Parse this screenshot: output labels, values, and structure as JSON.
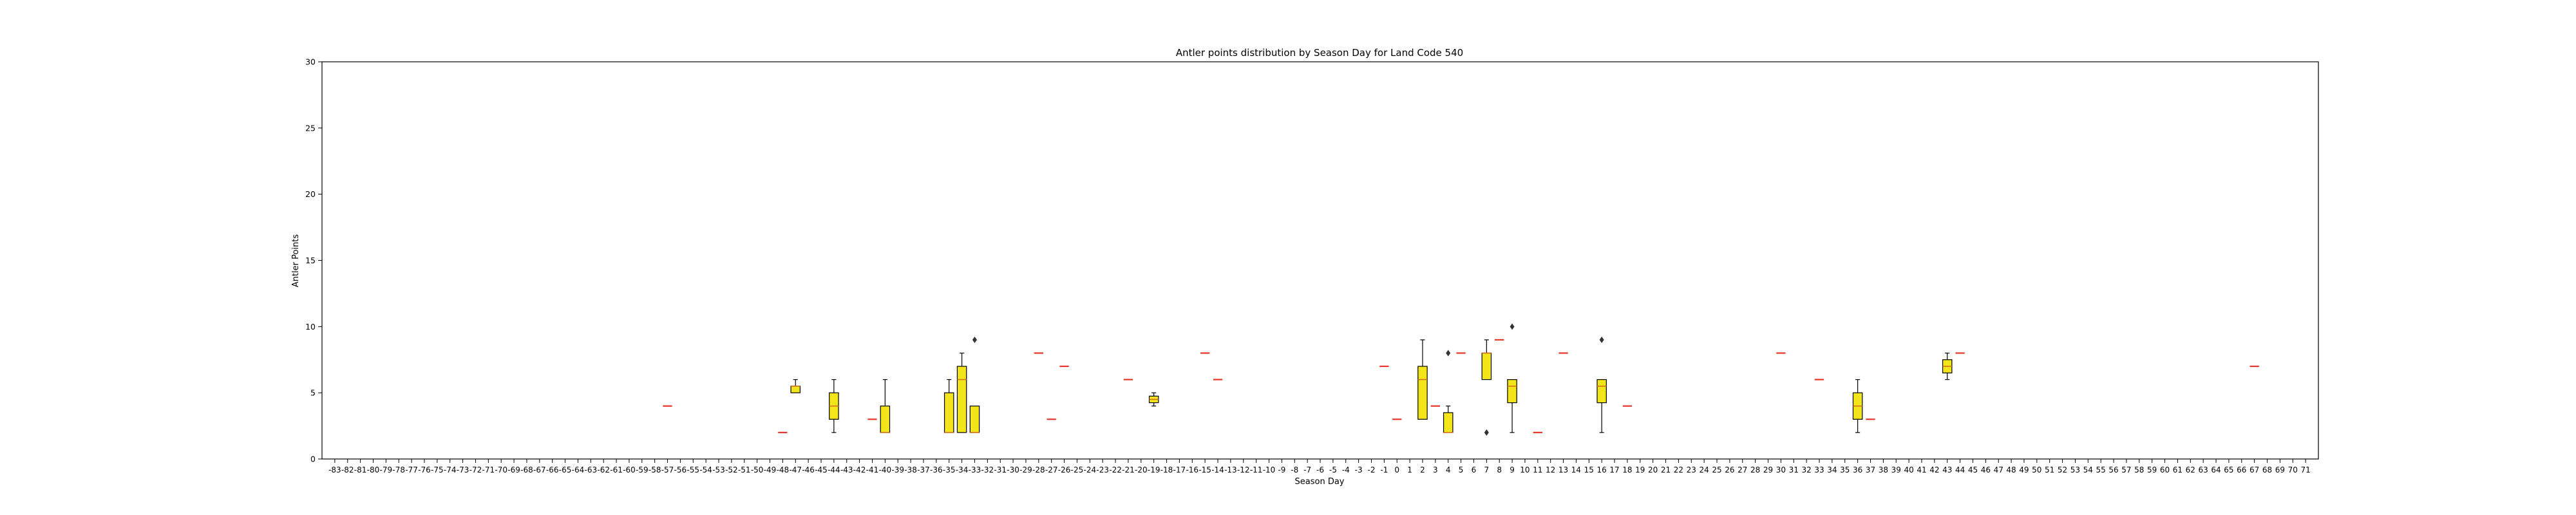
{
  "chart_data": {
    "type": "box",
    "title": "Antler points distribution by Season Day for Land Code 540",
    "xlabel": "Season Day",
    "ylabel": "Antler Points",
    "ylim": [
      0,
      30
    ],
    "yticks": [
      0,
      5,
      10,
      15,
      20,
      25,
      30
    ],
    "x_start": -83,
    "x_end": 71,
    "grid": false,
    "colors": {
      "box_fill": "#f2e51a",
      "median": "#d4721b",
      "single": "#e8342a",
      "line": "#000000"
    },
    "boxes": [
      {
        "x": -57,
        "min": 4,
        "q1": 4,
        "median": 4,
        "q3": 4,
        "max": 4
      },
      {
        "x": -48,
        "min": 2,
        "q1": 2,
        "median": 2,
        "q3": 2,
        "max": 2
      },
      {
        "x": -47,
        "min": 5,
        "q1": 5,
        "median": 5.5,
        "q3": 5.5,
        "max": 6
      },
      {
        "x": -44,
        "min": 2,
        "q1": 3,
        "median": 4,
        "q3": 5,
        "max": 6
      },
      {
        "x": -41,
        "min": 3,
        "q1": 3,
        "median": 3,
        "q3": 3,
        "max": 3
      },
      {
        "x": -40,
        "min": 2,
        "q1": 2,
        "median": 2,
        "q3": 4,
        "max": 6
      },
      {
        "x": -35,
        "min": 2,
        "q1": 2,
        "median": 2,
        "q3": 5,
        "max": 6
      },
      {
        "x": -34,
        "min": 2,
        "q1": 2,
        "median": 6,
        "q3": 7,
        "max": 8
      },
      {
        "x": -33,
        "min": 2,
        "q1": 2,
        "median": 2,
        "q3": 4,
        "max": 4,
        "outliers": [
          9
        ]
      },
      {
        "x": -28,
        "min": 8,
        "q1": 8,
        "median": 8,
        "q3": 8,
        "max": 8
      },
      {
        "x": -27,
        "min": 3,
        "q1": 3,
        "median": 3,
        "q3": 3,
        "max": 3
      },
      {
        "x": -26,
        "min": 7,
        "q1": 7,
        "median": 7,
        "q3": 7,
        "max": 7
      },
      {
        "x": -21,
        "min": 6,
        "q1": 6,
        "median": 6,
        "q3": 6,
        "max": 6
      },
      {
        "x": -19,
        "min": 4,
        "q1": 4.25,
        "median": 4.5,
        "q3": 4.75,
        "max": 5
      },
      {
        "x": -15,
        "min": 8,
        "q1": 8,
        "median": 8,
        "q3": 8,
        "max": 8
      },
      {
        "x": -14,
        "min": 6,
        "q1": 6,
        "median": 6,
        "q3": 6,
        "max": 6
      },
      {
        "x": -1,
        "min": 7,
        "q1": 7,
        "median": 7,
        "q3": 7,
        "max": 7
      },
      {
        "x": 0,
        "min": 3,
        "q1": 3,
        "median": 3,
        "q3": 3,
        "max": 3
      },
      {
        "x": 2,
        "min": 3,
        "q1": 3,
        "median": 6,
        "q3": 7,
        "max": 9
      },
      {
        "x": 3,
        "min": 4,
        "q1": 4,
        "median": 4,
        "q3": 4,
        "max": 4
      },
      {
        "x": 4,
        "min": 2,
        "q1": 2,
        "median": 2,
        "q3": 3.5,
        "max": 4,
        "outliers": [
          8
        ]
      },
      {
        "x": 5,
        "min": 8,
        "q1": 8,
        "median": 8,
        "q3": 8,
        "max": 8
      },
      {
        "x": 7,
        "min": 6,
        "q1": 6,
        "median": 8,
        "q3": 8,
        "max": 9,
        "outliers": [
          2
        ]
      },
      {
        "x": 8,
        "min": 9,
        "q1": 9,
        "median": 9,
        "q3": 9,
        "max": 9
      },
      {
        "x": 9,
        "min": 2,
        "q1": 4.25,
        "median": 5.5,
        "q3": 6,
        "max": 6,
        "outliers": [
          10
        ]
      },
      {
        "x": 11,
        "min": 2,
        "q1": 2,
        "median": 2,
        "q3": 2,
        "max": 2
      },
      {
        "x": 13,
        "min": 8,
        "q1": 8,
        "median": 8,
        "q3": 8,
        "max": 8
      },
      {
        "x": 16,
        "min": 2,
        "q1": 4.25,
        "median": 5.5,
        "q3": 6,
        "max": 6,
        "outliers": [
          9
        ]
      },
      {
        "x": 18,
        "min": 4,
        "q1": 4,
        "median": 4,
        "q3": 4,
        "max": 4
      },
      {
        "x": 30,
        "min": 8,
        "q1": 8,
        "median": 8,
        "q3": 8,
        "max": 8
      },
      {
        "x": 33,
        "min": 6,
        "q1": 6,
        "median": 6,
        "q3": 6,
        "max": 6
      },
      {
        "x": 36,
        "min": 2,
        "q1": 3,
        "median": 4,
        "q3": 5,
        "max": 6
      },
      {
        "x": 37,
        "min": 3,
        "q1": 3,
        "median": 3,
        "q3": 3,
        "max": 3
      },
      {
        "x": 43,
        "min": 6,
        "q1": 6.5,
        "median": 7,
        "q3": 7.5,
        "max": 8
      },
      {
        "x": 44,
        "min": 8,
        "q1": 8,
        "median": 8,
        "q3": 8,
        "max": 8
      },
      {
        "x": 67,
        "min": 7,
        "q1": 7,
        "median": 7,
        "q3": 7,
        "max": 7
      }
    ]
  }
}
